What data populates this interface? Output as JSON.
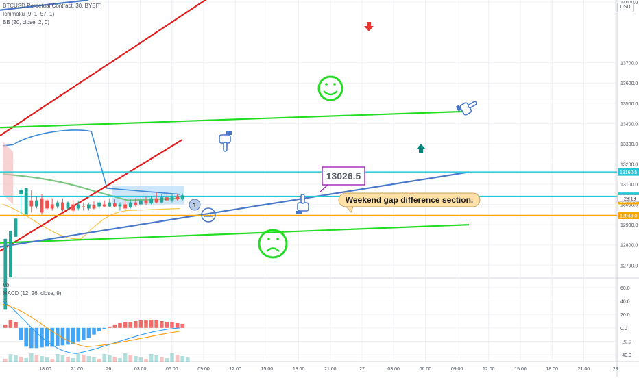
{
  "legend": {
    "symbol": "BTCUSD Perpetual Contract, 30, BYBIT",
    "ichimoku": "Ichimoku (9, 1, 57, 1)",
    "bb": "BB (20, close, 2, 0)",
    "vol": "Vol",
    "macd": "MACD (12, 26, close, 9)"
  },
  "currency_button": "USD",
  "chart_data": [
    {
      "type": "line",
      "title": "",
      "xlabel": "",
      "ylabel": "",
      "ylim": [
        12640,
        14010
      ],
      "y_ticks": [
        14000,
        13700,
        13600,
        13500,
        13400,
        13300,
        13200,
        13100,
        13000,
        12900,
        12800,
        12700
      ],
      "y_tick_labels": [
        "14000.0",
        "13700.0",
        "13600.0",
        "13500.0",
        "13400.0",
        "13300.0",
        "13200.0",
        "13100.0",
        "13000.0",
        "12900.0",
        "12800.0",
        "12700.0"
      ],
      "x_ticks": [
        "18:00",
        "21:00",
        "26",
        "03:00",
        "06:00",
        "09:00",
        "12:00",
        "15:00",
        "18:00",
        "21:00",
        "27",
        "03:00",
        "06:00",
        "09:00",
        "12:00",
        "15:00",
        "18:00",
        "21:00",
        "28"
      ],
      "price_tags": [
        {
          "value": 13160.5,
          "label": "13160.5",
          "color": "#26c6da"
        },
        {
          "value": 13040.5,
          "label": "13040.5",
          "color": "#26c6da"
        },
        {
          "value": 13019.0,
          "label": "13019.0",
          "color": "#f7a600"
        },
        {
          "value": 12946.0,
          "label": "12946.0",
          "color": "#f7a600"
        }
      ],
      "countdown": "28:18",
      "annotations": {
        "price_callout": "13026.5",
        "note": "Weekend gap difference section.",
        "marker": "1"
      },
      "candles": [
        [
          12480,
          12830,
          12510,
          12640
        ],
        [
          12640,
          12870,
          12790,
          12840
        ],
        [
          12840,
          12930,
          12930,
          13050
        ],
        [
          13050,
          13070,
          13080,
          12950
        ],
        [
          12950,
          13080,
          12980,
          13020
        ],
        [
          13020,
          12990,
          13070,
          12960
        ],
        [
          12990,
          13020,
          13040,
          12980
        ],
        [
          13030,
          12960,
          13050,
          12950
        ],
        [
          13020,
          12980,
          13030,
          12975
        ],
        [
          13000,
          12980,
          13030,
          12970
        ],
        [
          12990,
          13010,
          13020,
          12980
        ],
        [
          13010,
          12975,
          13030,
          12965
        ],
        [
          12980,
          13010,
          13015,
          12970
        ],
        [
          13000,
          12970,
          13020,
          12960
        ],
        [
          12980,
          13000,
          13020,
          12970
        ],
        [
          12990,
          12985,
          13010,
          12970
        ],
        [
          12980,
          13000,
          13010,
          12970
        ],
        [
          12995,
          12980,
          13015,
          12975
        ],
        [
          12990,
          13010,
          13020,
          12980
        ],
        [
          13000,
          12990,
          13020,
          12985
        ],
        [
          12990,
          13010,
          13030,
          12985
        ],
        [
          13005,
          12990,
          13025,
          12985
        ],
        [
          12990,
          13000,
          13010,
          12970
        ],
        [
          13000,
          12980,
          13015,
          12975
        ],
        [
          12985,
          13010,
          13025,
          12980
        ],
        [
          13010,
          12995,
          13030,
          12990
        ],
        [
          13000,
          13020,
          13035,
          12990
        ],
        [
          13020,
          13005,
          13040,
          12995
        ],
        [
          13005,
          13030,
          13040,
          13000
        ],
        [
          13030,
          13010,
          13060,
          13005
        ],
        [
          13010,
          13035,
          13050,
          13005
        ],
        [
          13035,
          13020,
          13060,
          13015
        ],
        [
          13020,
          13040,
          13050,
          13010
        ],
        [
          13040,
          13025,
          13050,
          13020
        ],
        [
          13025,
          13045,
          13055,
          13020
        ]
      ],
      "trend_lines": [
        {
          "name": "",
          "color": "#e01b1b",
          "points": [
            [
              0,
              12770
            ],
            [
              35,
              13320
            ]
          ]
        },
        {
          "name": "",
          "color": "#e01b1b",
          "points": [
            [
              0,
              13340
            ],
            [
              40,
              14020
            ]
          ]
        },
        {
          "name": "",
          "color": "#22dd22",
          "points": [
            [
              0,
              13380
            ],
            [
              90,
              13460
            ]
          ]
        },
        {
          "name": "",
          "color": "#22dd22",
          "points": [
            [
              0,
              12810
            ],
            [
              90,
              12900
            ]
          ]
        },
        {
          "name": "",
          "color": "#4a78c8",
          "points": [
            [
              0,
              12790
            ],
            [
              90,
              13160
            ]
          ]
        },
        {
          "name": "",
          "color": "#4a78c8",
          "points": [
            [
              0,
              13960
            ],
            [
              17,
              14010
            ]
          ]
        }
      ]
    },
    {
      "type": "bar",
      "title": "",
      "xlabel": "",
      "ylabel": "",
      "ylim": [
        -50,
        70
      ],
      "y_ticks": [
        60,
        40,
        20,
        0,
        -20,
        -40
      ],
      "y_tick_labels": [
        "60.0",
        "40.0",
        "20.0",
        "0.0",
        "-20.0",
        "-40.0"
      ],
      "series": [
        {
          "name": "",
          "values": [
            5,
            12,
            8,
            -18,
            -28,
            -30,
            -30,
            -29,
            -28,
            -28,
            -27,
            -26,
            -25,
            -24,
            -20,
            -18,
            -15,
            -10,
            -5,
            -2,
            2,
            5,
            7,
            8,
            9,
            10,
            11,
            12,
            12,
            11,
            10,
            9,
            8,
            7,
            6
          ]
        }
      ]
    }
  ]
}
